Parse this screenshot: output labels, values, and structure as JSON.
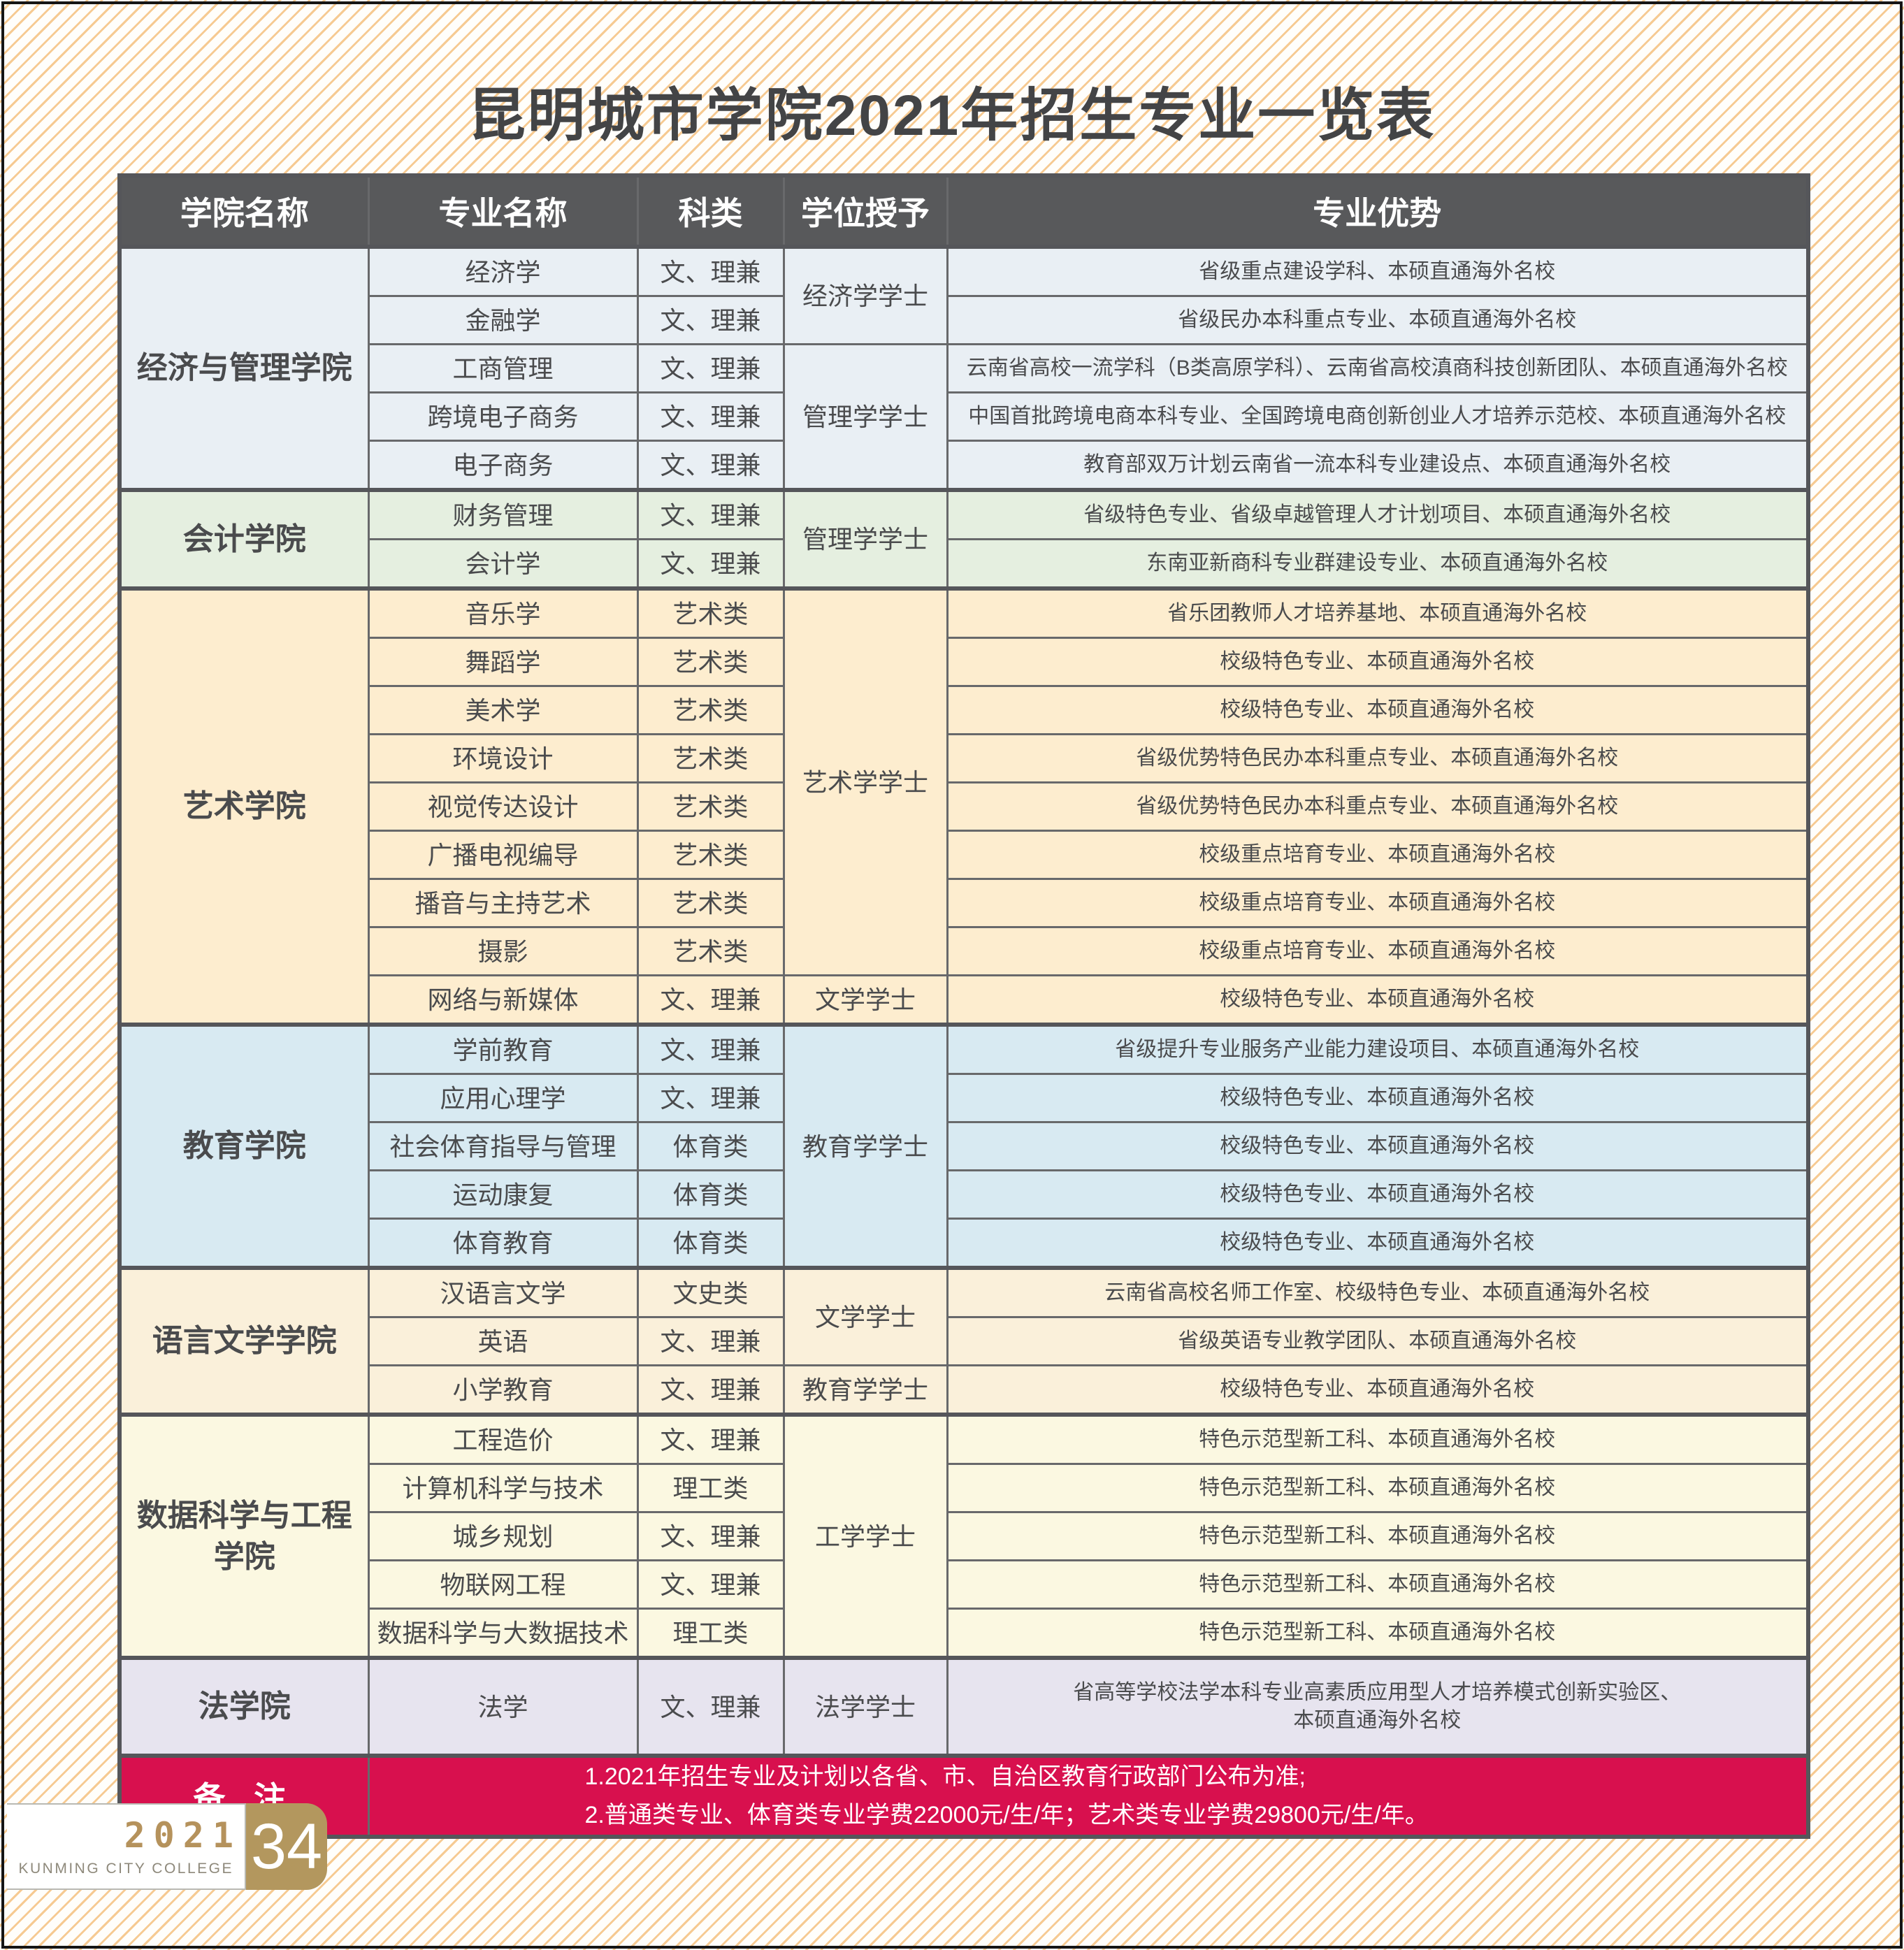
{
  "page": {
    "title": "昆明城市学院2021年招生专业一览表",
    "footer": {
      "year": "2021",
      "college": "KUNMING CITY COLLEGE",
      "page_number": "34"
    }
  },
  "colors": {
    "header_bg": "#58595b",
    "table_border": "#68696b",
    "section_border": "#55565a",
    "title_text": "#434446",
    "cell_text": "#4a4b4d",
    "note_bg": "#d8104e",
    "stripe": "#f6ca92",
    "gold": "#b3975e",
    "footer_year_text": "#b5925c",
    "footer_college_text": "#8e897b"
  },
  "table": {
    "headers": [
      "学院名称",
      "专业名称",
      "科类",
      "学位授予",
      "专业优势"
    ],
    "sections": [
      {
        "college": "经济与管理学院",
        "bg": "#e9eff4",
        "rows": [
          {
            "major": "经济学",
            "category": "文、理兼",
            "degree": "经济学学士",
            "degree_span": 2,
            "advantage": "省级重点建设学科、本硕直通海外名校"
          },
          {
            "major": "金融学",
            "category": "文、理兼",
            "advantage": "省级民办本科重点专业、本硕直通海外名校"
          },
          {
            "major": "工商管理",
            "category": "文、理兼",
            "degree": "管理学学士",
            "degree_span": 3,
            "advantage": "云南省高校一流学科（B类高原学科）、云南省高校滇商科技创新团队、本硕直通海外名校"
          },
          {
            "major": "跨境电子商务",
            "category": "文、理兼",
            "advantage": "中国首批跨境电商本科专业、全国跨境电商创新创业人才培养示范校、本硕直通海外名校"
          },
          {
            "major": "电子商务",
            "category": "文、理兼",
            "advantage": "教育部双万计划云南省一流本科专业建设点、本硕直通海外名校"
          }
        ]
      },
      {
        "college": "会计学院",
        "bg": "#e5efe0",
        "rows": [
          {
            "major": "财务管理",
            "category": "文、理兼",
            "degree": "管理学学士",
            "degree_span": 2,
            "advantage": "省级特色专业、省级卓越管理人才计划项目、本硕直通海外名校"
          },
          {
            "major": "会计学",
            "category": "文、理兼",
            "advantage": "东南亚新商科专业群建设专业、本硕直通海外名校"
          }
        ]
      },
      {
        "college": "艺术学院",
        "bg": "#fdedcf",
        "rows": [
          {
            "major": "音乐学",
            "category": "艺术类",
            "degree": "艺术学学士",
            "degree_span": 8,
            "advantage": "省乐团教师人才培养基地、本硕直通海外名校"
          },
          {
            "major": "舞蹈学",
            "category": "艺术类",
            "advantage": "校级特色专业、本硕直通海外名校"
          },
          {
            "major": "美术学",
            "category": "艺术类",
            "advantage": "校级特色专业、本硕直通海外名校"
          },
          {
            "major": "环境设计",
            "category": "艺术类",
            "advantage": "省级优势特色民办本科重点专业、本硕直通海外名校"
          },
          {
            "major": "视觉传达设计",
            "category": "艺术类",
            "advantage": "省级优势特色民办本科重点专业、本硕直通海外名校"
          },
          {
            "major": "广播电视编导",
            "category": "艺术类",
            "advantage": "校级重点培育专业、本硕直通海外名校"
          },
          {
            "major": "播音与主持艺术",
            "category": "艺术类",
            "advantage": "校级重点培育专业、本硕直通海外名校"
          },
          {
            "major": "摄影",
            "category": "艺术类",
            "advantage": "校级重点培育专业、本硕直通海外名校"
          },
          {
            "major": "网络与新媒体",
            "category": "文、理兼",
            "degree": "文学学士",
            "degree_span": 1,
            "advantage": "校级特色专业、本硕直通海外名校"
          }
        ]
      },
      {
        "college": "教育学院",
        "bg": "#d8eaf2",
        "rows": [
          {
            "major": "学前教育",
            "category": "文、理兼",
            "degree": "教育学学士",
            "degree_span": 5,
            "advantage": "省级提升专业服务产业能力建设项目、本硕直通海外名校"
          },
          {
            "major": "应用心理学",
            "category": "文、理兼",
            "advantage": "校级特色专业、本硕直通海外名校"
          },
          {
            "major": "社会体育指导与管理",
            "category": "体育类",
            "advantage": "校级特色专业、本硕直通海外名校"
          },
          {
            "major": "运动康复",
            "category": "体育类",
            "advantage": "校级特色专业、本硕直通海外名校"
          },
          {
            "major": "体育教育",
            "category": "体育类",
            "advantage": "校级特色专业、本硕直通海外名校"
          }
        ]
      },
      {
        "college": "语言文学学院",
        "bg": "#faf0da",
        "rows": [
          {
            "major": "汉语言文学",
            "category": "文史类",
            "degree": "文学学士",
            "degree_span": 2,
            "advantage": "云南省高校名师工作室、校级特色专业、本硕直通海外名校"
          },
          {
            "major": "英语",
            "category": "文、理兼",
            "advantage": "省级英语专业教学团队、本硕直通海外名校"
          },
          {
            "major": "小学教育",
            "category": "文、理兼",
            "degree": "教育学学士",
            "degree_span": 1,
            "advantage": "校级特色专业、本硕直通海外名校"
          }
        ]
      },
      {
        "college": "数据科学与工程学院",
        "bg": "#fbf8e1",
        "rows": [
          {
            "major": "工程造价",
            "category": "文、理兼",
            "degree": "工学学士",
            "degree_span": 5,
            "advantage": "特色示范型新工科、本硕直通海外名校"
          },
          {
            "major": "计算机科学与技术",
            "category": "理工类",
            "advantage": "特色示范型新工科、本硕直通海外名校"
          },
          {
            "major": "城乡规划",
            "category": "文、理兼",
            "advantage": "特色示范型新工科、本硕直通海外名校"
          },
          {
            "major": "物联网工程",
            "category": "文、理兼",
            "advantage": "特色示范型新工科、本硕直通海外名校"
          },
          {
            "major": "数据科学与大数据技术",
            "category": "理工类",
            "advantage": "特色示范型新工科、本硕直通海外名校"
          }
        ]
      },
      {
        "college": "法学院",
        "bg": "#e7e4ef",
        "rows": [
          {
            "major": "法学",
            "category": "文、理兼",
            "degree": "法学学士",
            "degree_span": 1,
            "tall": true,
            "advantage": "省高等学校法学本科专业高素质应用型人才培养模式创新实验区、\n本硕直通海外名校"
          }
        ]
      }
    ],
    "note": {
      "label": "备 注",
      "bg": "#d8104e",
      "lines": [
        "1.2021年招生专业及计划以各省、市、自治区教育行政部门公布为准;",
        "2.普通类专业、体育类专业学费22000元/生/年；艺术类专业学费29800元/生/年。"
      ]
    }
  }
}
